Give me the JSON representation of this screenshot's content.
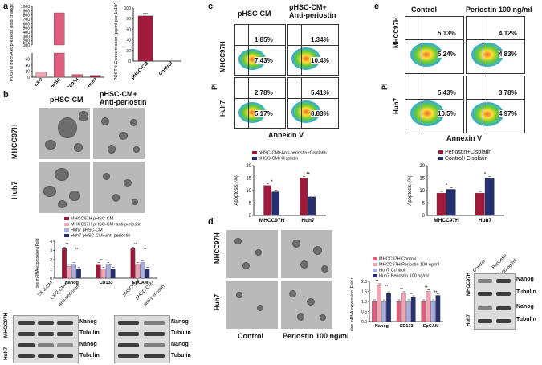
{
  "panel_labels": {
    "a": "a",
    "b": "b",
    "c": "c",
    "d": "d",
    "e": "e"
  },
  "colors": {
    "pink": "#f1a4b4",
    "deep_pink": "#de5e7e",
    "crimson": "#a01a3c",
    "navy": "#27306e",
    "lavender": "#a8aee0",
    "green_cloud": "#5fc23f"
  },
  "panel_a": {
    "chart_data": [
      {
        "type": "bar",
        "title": "",
        "ylabel": "POSTN mRNA expression (fold change)",
        "categories": [
          "LX-2",
          "pHSC",
          "MHCC97H",
          "Huh7"
        ],
        "values": [
          17,
          850,
          9,
          6
        ],
        "ylim": [
          0,
          1000
        ],
        "axis_break": [
          80,
          100
        ],
        "yticks_low": [
          "0",
          "20",
          "40",
          "60"
        ],
        "yticks_high": [
          "100",
          "200",
          "300",
          "400",
          "500",
          "600",
          "700",
          "800",
          "900",
          "1000"
        ]
      },
      {
        "type": "bar",
        "title": "",
        "ylabel": "POSTN Concentration (pg/ml per 1x10^6 cells)",
        "categories": [
          "pHSC-CM",
          "Control"
        ],
        "values": [
          85,
          0
        ],
        "ylim": [
          0,
          100
        ],
        "yticks": [
          "0",
          "20",
          "40",
          "60",
          "80",
          "100"
        ]
      }
    ]
  },
  "panel_b": {
    "col_titles": [
      "pHSC-CM",
      "pHSC-CM+",
      "Anti-periostin"
    ],
    "row_labels": [
      "MHCC97H",
      "Huh7"
    ],
    "legend": [
      "MHCC97H pHSC-CM",
      "MHCC97H pHSC-CM+anti-periostin",
      "Huh7 pHSC-CM",
      "Huh7 pHSC-CM+anti-periostin"
    ],
    "chart_data": {
      "type": "bar",
      "ylabel": "Relative mRNA expression (Fold change)",
      "categories": [
        "Nanog",
        "CD133",
        "EpCAM"
      ],
      "series": [
        {
          "name": "MHCC97H pHSC-CM",
          "values": [
            3.2,
            1.5,
            3.2
          ]
        },
        {
          "name": "MHCC97H pHSC-CM+anti-periostin",
          "values": [
            1.3,
            1.0,
            1.5
          ]
        },
        {
          "name": "Huh7 pHSC-CM",
          "values": [
            1.5,
            1.5,
            1.7
          ]
        },
        {
          "name": "Huh7 pHSC-CM+anti-periostin",
          "values": [
            1.0,
            1.0,
            1.0
          ]
        }
      ],
      "ylim": [
        0,
        4
      ],
      "yticks": [
        "0",
        "1",
        "2",
        "3",
        "4"
      ],
      "sig": [
        "**",
        "**",
        "**",
        "**",
        "**",
        "**"
      ]
    },
    "wb_cols_left": [
      "LX-2-CM",
      "LX-2-CM+",
      "anti-periostin"
    ],
    "wb_cols_right": [
      "pHSC-CM",
      "pHSC-CM+",
      "anti-periostin"
    ],
    "wb_rows": [
      "MHCC97H",
      "Huh7"
    ],
    "wb_bands": [
      "Nanog",
      "Tubulin",
      "Nanog",
      "Tubulin"
    ]
  },
  "panel_c": {
    "col_titles": [
      "pHSC-CM",
      "pHSC-CM+",
      "Anti-periostin"
    ],
    "row_labels": [
      "MHCC97H",
      "Huh7"
    ],
    "pi": "PI",
    "annexin": "Annexin V",
    "quadrants": [
      {
        "ur": "1.85%",
        "lr": "7.43%"
      },
      {
        "ur": "1.34%",
        "lr": "10.4%"
      },
      {
        "ur": "2.78%",
        "lr": "5.17%"
      },
      {
        "ur": "5.41%",
        "lr": "8.83%"
      }
    ],
    "legend": [
      "pHSC-CM+Anti-periostin+Cisplatin",
      "pHSC-CM+Cisplatin"
    ],
    "chart_data": {
      "type": "bar",
      "ylabel": "Apoptosis (%)",
      "categories": [
        "MHCC97H",
        "Huh7"
      ],
      "series": [
        {
          "name": "pHSC-CM+Anti-periostin+Cisplatin",
          "values": [
            12,
            15
          ]
        },
        {
          "name": "pHSC-CM+Cisplatin",
          "values": [
            9.5,
            7.5
          ]
        }
      ],
      "ylim": [
        0,
        20
      ],
      "yticks": [
        "0",
        "5",
        "10",
        "15",
        "20"
      ],
      "sig": [
        "*",
        "**"
      ]
    }
  },
  "panel_d": {
    "row_labels": [
      "MHCC97H",
      "Huh7"
    ],
    "col_titles": [
      "Control",
      "Periostin 100 ng/ml"
    ],
    "legend": [
      "MHCC97H Control",
      "MHCC97H Periostin 100 ng/ml",
      "Huh7 Control",
      "Huh7 Periostin 100 ng/ml"
    ],
    "chart_data": {
      "type": "bar",
      "ylabel": "Relative mRNA expression (Fold change)",
      "categories": [
        "Nanog",
        "CD133",
        "EpCAM"
      ],
      "series": [
        {
          "name": "MHCC97H Control",
          "values": [
            1.0,
            1.0,
            1.0
          ]
        },
        {
          "name": "MHCC97H Periostin 100 ng/ml",
          "values": [
            1.8,
            1.4,
            1.5
          ]
        },
        {
          "name": "Huh7 Control",
          "values": [
            1.0,
            1.0,
            1.0
          ]
        },
        {
          "name": "Huh7 Periostin 100 ng/ml",
          "values": [
            1.4,
            1.2,
            1.3
          ]
        }
      ],
      "ylim": [
        0,
        2.0
      ],
      "yticks": [
        "0.0",
        "0.5",
        "1.0",
        "1.5",
        "2.0"
      ],
      "sig": [
        "**",
        "**",
        "**",
        "**",
        "**",
        "**"
      ]
    },
    "wb_cols": [
      "Control",
      "Periostin",
      "100 ng/ml"
    ],
    "wb_rows": [
      "MHCC97H",
      "Huh7"
    ],
    "wb_bands": [
      "Nanog",
      "Tubulin",
      "Nanog",
      "Tubulin"
    ]
  },
  "panel_e": {
    "col_titles": [
      "Control",
      "Periostin 100 ng/ml"
    ],
    "row_labels": [
      "MHCC97H",
      "Huh7"
    ],
    "pi": "PI",
    "annexin": "Annexin V",
    "quadrants": [
      {
        "ur": "5.13%",
        "lr": "5.24%"
      },
      {
        "ur": "4.12%",
        "lr": "4.83%"
      },
      {
        "ur": "5.43%",
        "lr": "10.5%"
      },
      {
        "ur": "3.78%",
        "lr": "4.97%"
      }
    ],
    "legend": [
      "Periostin+Cisplatin",
      "Control+Cisplatin"
    ],
    "chart_data": {
      "type": "bar",
      "ylabel": "Apoptosis (%)",
      "categories": [
        "MHCC97H",
        "Huh7"
      ],
      "series": [
        {
          "name": "Periostin+Cisplatin",
          "values": [
            9,
            9
          ]
        },
        {
          "name": "Control+Cisplatin",
          "values": [
            10.5,
            15
          ]
        }
      ],
      "ylim": [
        0,
        20
      ],
      "yticks": [
        "0",
        "5",
        "10",
        "15",
        "20"
      ],
      "sig": [
        "*",
        "*"
      ]
    }
  }
}
